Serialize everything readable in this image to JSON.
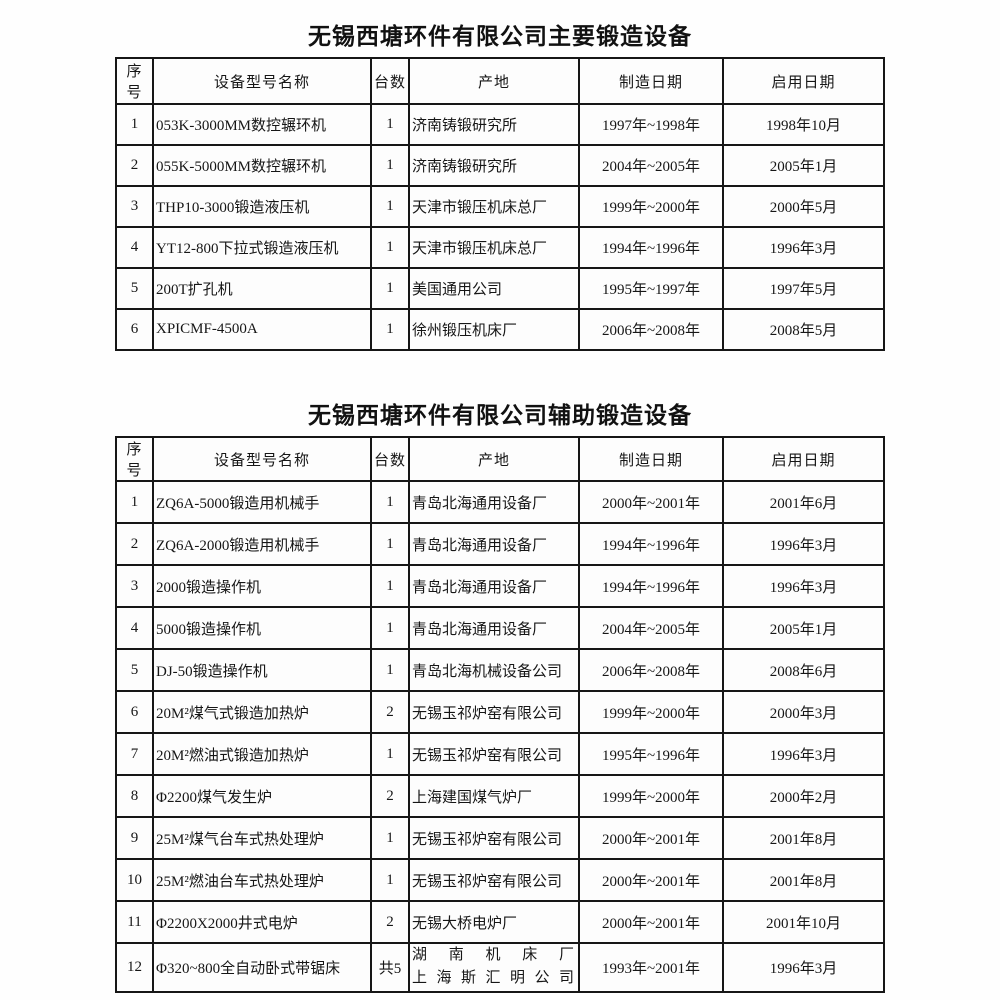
{
  "doc": {
    "main_table": {
      "title": "无锡西塘环件有限公司主要锻造设备",
      "headers": [
        "序号",
        "设备型号名称",
        "台数",
        "产地",
        "制造日期",
        "启用日期"
      ],
      "rows": [
        [
          "1",
          "053K-3000MM数控辗环机",
          "1",
          "济南铸锻研究所",
          "1997年~1998年",
          "1998年10月"
        ],
        [
          "2",
          "055K-5000MM数控辗环机",
          "1",
          "济南铸锻研究所",
          "2004年~2005年",
          "2005年1月"
        ],
        [
          "3",
          "THP10-3000锻造液压机",
          "1",
          "天津市锻压机床总厂",
          "1999年~2000年",
          "2000年5月"
        ],
        [
          "4",
          "YT12-800下拉式锻造液压机",
          "1",
          "天津市锻压机床总厂",
          "1994年~1996年",
          "1996年3月"
        ],
        [
          "5",
          "200T扩孔机",
          "1",
          "美国通用公司",
          "1995年~1997年",
          "1997年5月"
        ],
        [
          "6",
          "XPICMF-4500A",
          "1",
          "徐州锻压机床厂",
          "2006年~2008年",
          "2008年5月"
        ]
      ]
    },
    "aux_table": {
      "title": "无锡西塘环件有限公司辅助锻造设备",
      "headers": [
        "序号",
        "设备型号名称",
        "台数",
        "产地",
        "制造日期",
        "启用日期"
      ],
      "rows": [
        [
          "1",
          "ZQ6A-5000锻造用机械手",
          "1",
          "青岛北海通用设备厂",
          "2000年~2001年",
          "2001年6月"
        ],
        [
          "2",
          "ZQ6A-2000锻造用机械手",
          "1",
          "青岛北海通用设备厂",
          "1994年~1996年",
          "1996年3月"
        ],
        [
          "3",
          "2000锻造操作机",
          "1",
          "青岛北海通用设备厂",
          "1994年~1996年",
          "1996年3月"
        ],
        [
          "4",
          "5000锻造操作机",
          "1",
          "青岛北海通用设备厂",
          "2004年~2005年",
          "2005年1月"
        ],
        [
          "5",
          "DJ-50锻造操作机",
          "1",
          "青岛北海机械设备公司",
          "2006年~2008年",
          "2008年6月"
        ],
        [
          "6",
          "20M²煤气式锻造加热炉",
          "2",
          "无锡玉祁炉窑有限公司",
          "1999年~2000年",
          "2000年3月"
        ],
        [
          "7",
          "20M²燃油式锻造加热炉",
          "1",
          "无锡玉祁炉窑有限公司",
          "1995年~1996年",
          "1996年3月"
        ],
        [
          "8",
          "Φ2200煤气发生炉",
          "2",
          "上海建国煤气炉厂",
          "1999年~2000年",
          "2000年2月"
        ],
        [
          "9",
          "25M²煤气台车式热处理炉",
          "1",
          "无锡玉祁炉窑有限公司",
          "2000年~2001年",
          "2001年8月"
        ],
        [
          "10",
          "25M²燃油台车式热处理炉",
          "1",
          "无锡玉祁炉窑有限公司",
          "2000年~2001年",
          "2001年8月"
        ],
        [
          "11",
          "Φ2200X2000井式电炉",
          "2",
          "无锡大桥电炉厂",
          "2000年~2001年",
          "2001年10月"
        ],
        [
          "12",
          "Φ320~800全自动卧式带锯床",
          "共5",
          "湖南机床厂\n上海斯汇明公司",
          "1993年~2001年",
          "1996年3月"
        ]
      ]
    }
  }
}
